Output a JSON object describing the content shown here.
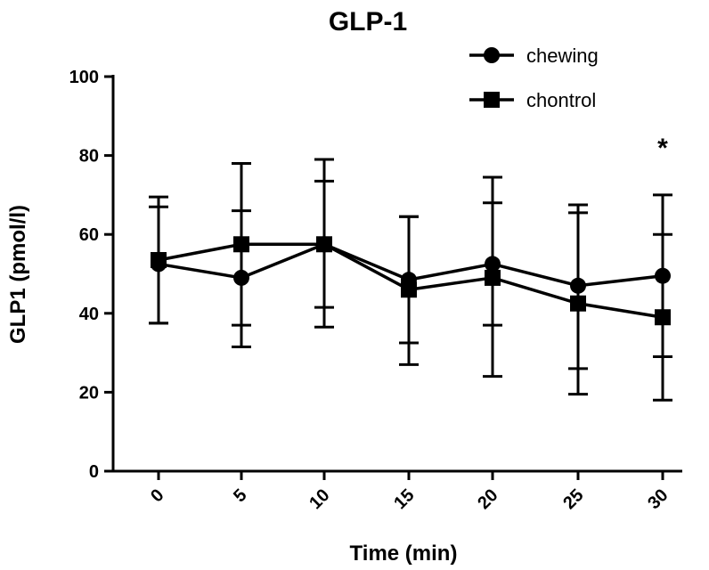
{
  "chart_data": {
    "type": "line",
    "title": "GLP-1",
    "xlabel": "Time (min)",
    "ylabel": "GLP1 (pmol/l)",
    "categories": [
      "0",
      "5",
      "10",
      "15",
      "20",
      "25",
      "30"
    ],
    "ylim": [
      0,
      100
    ],
    "yticks": [
      0,
      20,
      40,
      60,
      80,
      100
    ],
    "grid": false,
    "legend_position": "top-right",
    "series": [
      {
        "name": "chewing",
        "marker": "circle",
        "values": [
          52.5,
          49,
          57.5,
          48.5,
          52.5,
          47,
          49.5
        ],
        "err_low": [
          37.5,
          31.5,
          41.5,
          32.5,
          37,
          26,
          29
        ],
        "err_high": [
          67,
          66,
          79,
          64.5,
          68,
          67.5,
          70
        ]
      },
      {
        "name": "chontrol",
        "marker": "square",
        "values": [
          53.5,
          57.5,
          57.5,
          46,
          49,
          42.5,
          39
        ],
        "err_low": [
          37.5,
          37,
          36.5,
          27,
          24,
          19.5,
          18
        ],
        "err_high": [
          69.5,
          78,
          73.5,
          64.5,
          74.5,
          65.5,
          60
        ]
      }
    ],
    "annotations": [
      {
        "category": "30",
        "text": "*"
      }
    ]
  }
}
